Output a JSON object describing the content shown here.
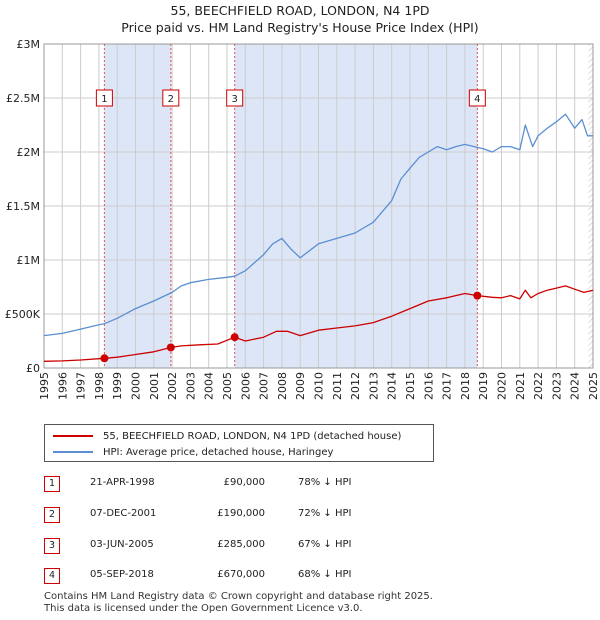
{
  "title_line1": "55, BEECHFIELD ROAD, LONDON, N4 1PD",
  "title_line2": "Price paid vs. HM Land Registry's House Price Index (HPI)",
  "colors": {
    "property": "#cc0000",
    "hpi": "#5b8fd0",
    "shade": "#dde6f7",
    "grid": "#cccccc",
    "marker_line": "#dd5555"
  },
  "chart_data": {
    "type": "line",
    "title": "Price paid vs. HM Land Registry's House Price Index (HPI)",
    "xlabel": "",
    "ylabel": "",
    "xlim": [
      1995,
      2025
    ],
    "ylim": [
      0,
      3000000
    ],
    "y_ticks": [
      {
        "value": 0,
        "label": "£0"
      },
      {
        "value": 500000,
        "label": "£500K"
      },
      {
        "value": 1000000,
        "label": "£1M"
      },
      {
        "value": 1500000,
        "label": "£1.5M"
      },
      {
        "value": 2000000,
        "label": "£2M"
      },
      {
        "value": 2500000,
        "label": "£2.5M"
      },
      {
        "value": 3000000,
        "label": "£3M"
      }
    ],
    "x_ticks": [
      "1995",
      "1996",
      "1997",
      "1998",
      "1999",
      "2000",
      "2001",
      "2002",
      "2003",
      "2004",
      "2005",
      "2006",
      "2007",
      "2008",
      "2009",
      "2010",
      "2011",
      "2012",
      "2013",
      "2014",
      "2015",
      "2016",
      "2017",
      "2018",
      "2019",
      "2020",
      "2021",
      "2022",
      "2023",
      "2024",
      "2025"
    ],
    "shaded_ranges": [
      [
        1998.3,
        2001.93
      ],
      [
        2005.42,
        2018.68
      ]
    ],
    "hatched_range": [
      2024.75,
      2025.0
    ],
    "series": [
      {
        "name": "55, BEECHFIELD ROAD, LONDON, N4 1PD (detached house)",
        "color": "#cc0000",
        "points": [
          [
            1995.0,
            62000
          ],
          [
            1996.0,
            66000
          ],
          [
            1997.0,
            74000
          ],
          [
            1998.3,
            90000
          ],
          [
            1999.0,
            100000
          ],
          [
            2000.0,
            125000
          ],
          [
            2001.0,
            150000
          ],
          [
            2001.93,
            190000
          ],
          [
            2002.5,
            205000
          ],
          [
            2003.5,
            215000
          ],
          [
            2004.5,
            222000
          ],
          [
            2005.42,
            285000
          ],
          [
            2006.0,
            250000
          ],
          [
            2007.0,
            285000
          ],
          [
            2007.7,
            340000
          ],
          [
            2008.3,
            340000
          ],
          [
            2009.0,
            300000
          ],
          [
            2010.0,
            350000
          ],
          [
            2011.0,
            370000
          ],
          [
            2012.0,
            390000
          ],
          [
            2013.0,
            420000
          ],
          [
            2014.0,
            480000
          ],
          [
            2015.0,
            550000
          ],
          [
            2016.0,
            620000
          ],
          [
            2017.0,
            650000
          ],
          [
            2018.0,
            690000
          ],
          [
            2018.68,
            670000
          ],
          [
            2019.5,
            655000
          ],
          [
            2020.0,
            650000
          ],
          [
            2020.5,
            670000
          ],
          [
            2021.0,
            640000
          ],
          [
            2021.3,
            720000
          ],
          [
            2021.6,
            650000
          ],
          [
            2022.0,
            690000
          ],
          [
            2022.5,
            720000
          ],
          [
            2023.0,
            740000
          ],
          [
            2023.5,
            760000
          ],
          [
            2024.0,
            730000
          ],
          [
            2024.5,
            700000
          ],
          [
            2025.0,
            720000
          ]
        ]
      },
      {
        "name": "HPI: Average price, detached house, Haringey",
        "color": "#5b8fd0",
        "points": [
          [
            1995.0,
            300000
          ],
          [
            1996.0,
            320000
          ],
          [
            1997.0,
            360000
          ],
          [
            1998.0,
            400000
          ],
          [
            1998.3,
            410000
          ],
          [
            1999.0,
            460000
          ],
          [
            2000.0,
            550000
          ],
          [
            2001.0,
            620000
          ],
          [
            2002.0,
            700000
          ],
          [
            2002.5,
            760000
          ],
          [
            2003.0,
            790000
          ],
          [
            2004.0,
            820000
          ],
          [
            2005.0,
            840000
          ],
          [
            2005.42,
            850000
          ],
          [
            2006.0,
            900000
          ],
          [
            2007.0,
            1050000
          ],
          [
            2007.5,
            1150000
          ],
          [
            2008.0,
            1200000
          ],
          [
            2008.5,
            1100000
          ],
          [
            2009.0,
            1020000
          ],
          [
            2010.0,
            1150000
          ],
          [
            2011.0,
            1200000
          ],
          [
            2012.0,
            1250000
          ],
          [
            2013.0,
            1350000
          ],
          [
            2014.0,
            1550000
          ],
          [
            2014.5,
            1750000
          ],
          [
            2015.0,
            1850000
          ],
          [
            2015.5,
            1950000
          ],
          [
            2016.0,
            2000000
          ],
          [
            2016.5,
            2050000
          ],
          [
            2017.0,
            2020000
          ],
          [
            2017.5,
            2050000
          ],
          [
            2018.0,
            2070000
          ],
          [
            2018.5,
            2050000
          ],
          [
            2019.0,
            2030000
          ],
          [
            2019.5,
            2000000
          ],
          [
            2020.0,
            2050000
          ],
          [
            2020.5,
            2050000
          ],
          [
            2021.0,
            2020000
          ],
          [
            2021.3,
            2250000
          ],
          [
            2021.7,
            2050000
          ],
          [
            2022.0,
            2150000
          ],
          [
            2022.5,
            2220000
          ],
          [
            2023.0,
            2280000
          ],
          [
            2023.5,
            2350000
          ],
          [
            2024.0,
            2220000
          ],
          [
            2024.4,
            2300000
          ],
          [
            2024.7,
            2150000
          ],
          [
            2025.0,
            2150000
          ]
        ]
      }
    ],
    "sales": [
      {
        "num": "1",
        "x": 1998.3,
        "value": 90000
      },
      {
        "num": "2",
        "x": 2001.93,
        "value": 190000
      },
      {
        "num": "3",
        "x": 2005.42,
        "value": 285000
      },
      {
        "num": "4",
        "x": 2018.68,
        "value": 670000
      }
    ]
  },
  "legend": {
    "property_label": "55, BEECHFIELD ROAD, LONDON, N4 1PD (detached house)",
    "hpi_label": "HPI: Average price, detached house, Haringey"
  },
  "transactions": [
    {
      "num": "1",
      "date": "21-APR-1998",
      "price": "£90,000",
      "hpi": "78% ↓ HPI"
    },
    {
      "num": "2",
      "date": "07-DEC-2001",
      "price": "£190,000",
      "hpi": "72% ↓ HPI"
    },
    {
      "num": "3",
      "date": "03-JUN-2005",
      "price": "£285,000",
      "hpi": "67% ↓ HPI"
    },
    {
      "num": "4",
      "date": "05-SEP-2018",
      "price": "£670,000",
      "hpi": "68% ↓ HPI"
    }
  ],
  "footer": {
    "line1": "Contains HM Land Registry data © Crown copyright and database right 2025.",
    "line2": "This data is licensed under the Open Government Licence v3.0."
  }
}
